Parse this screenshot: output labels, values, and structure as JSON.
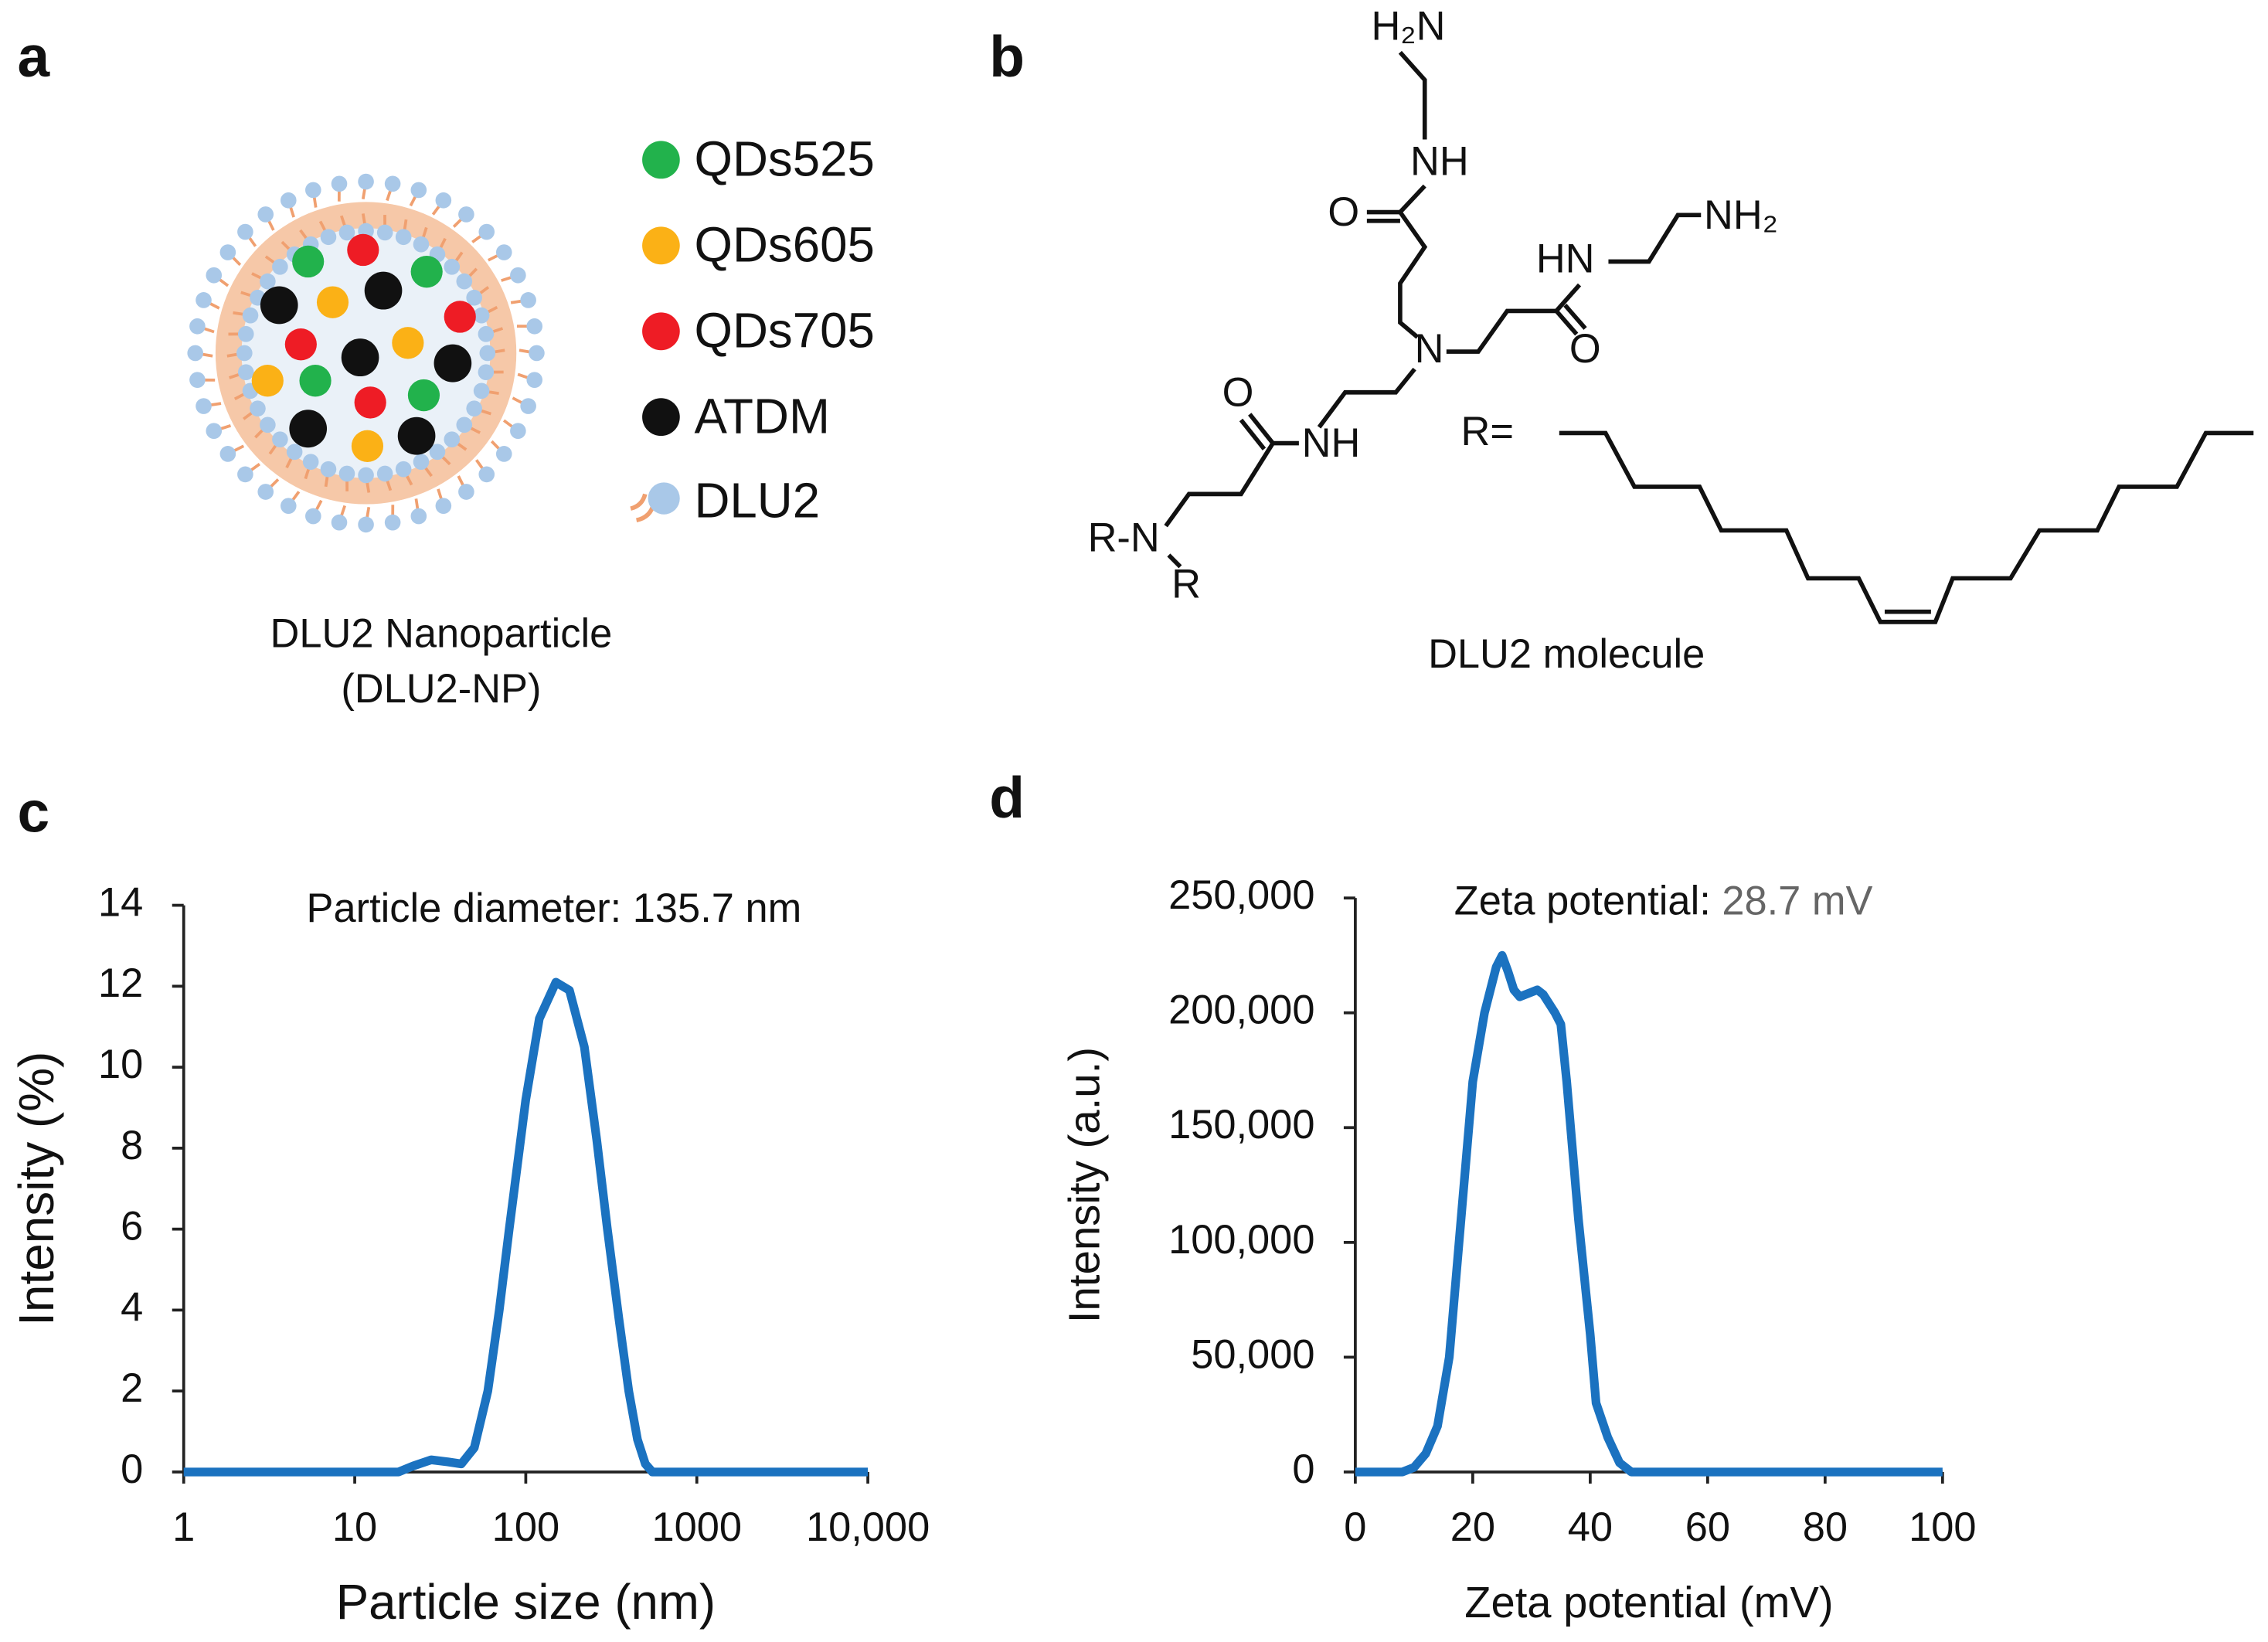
{
  "panel_labels": [
    "a",
    "b",
    "c",
    "d"
  ],
  "nanoparticle": {
    "legend": [
      "QDs525",
      "QDs605",
      "QDs705",
      "ATDM",
      "DLU2"
    ],
    "caption": [
      "DLU2 Nanoparticle",
      "(DLU2-NP)"
    ]
  },
  "molecule": {
    "atoms": [
      "H₂N",
      "NH",
      "O",
      "HN",
      "NH₂",
      "O",
      "N",
      "O",
      "NH",
      "R-N",
      "R",
      "R="
    ],
    "caption": "DLU2 molecule"
  },
  "chart_data": [
    {
      "type": "line",
      "annotation": "Particle diameter: 135.7 nm",
      "x_label": "Particle size (nm)",
      "y_label": "Intensity (%)",
      "xscale": "log",
      "xlim": [
        1,
        10000
      ],
      "xticks": [
        1,
        10,
        100,
        1000,
        {
          "value": 10000,
          "label": "10,000"
        }
      ],
      "ylim": [
        0,
        14
      ],
      "yticks": [
        0,
        2,
        4,
        6,
        8,
        10,
        12,
        14
      ],
      "color": "#1b72c0",
      "x": [
        1,
        10,
        18,
        22,
        28,
        35,
        42,
        50,
        60,
        70,
        80,
        100,
        120,
        150,
        180,
        220,
        260,
        300,
        350,
        400,
        450,
        500,
        550,
        1000,
        10000
      ],
      "values": [
        0,
        0,
        0,
        0.15,
        0.3,
        0.25,
        0.2,
        0.6,
        2,
        4,
        6,
        9.2,
        11.2,
        12.1,
        11.9,
        10.5,
        8.2,
        6,
        3.8,
        2,
        0.8,
        0.2,
        0,
        0,
        0
      ]
    },
    {
      "type": "line",
      "annotation": [
        "Zeta potential: ",
        "28.7 mV"
      ],
      "x_label": "Zeta potential (mV)",
      "y_label": "Intensity (a.u.)",
      "xscale": "linear",
      "xlim": [
        0,
        100
      ],
      "xticks": [
        0,
        20,
        40,
        60,
        80,
        100
      ],
      "ylim": [
        0,
        250000
      ],
      "yticks": [
        0,
        {
          "value": 50000,
          "label": "50,000"
        },
        {
          "value": 100000,
          "label": "100,000"
        },
        {
          "value": 150000,
          "label": "150,000"
        },
        {
          "value": 200000,
          "label": "200,000"
        },
        {
          "value": 250000,
          "label": "250,000"
        }
      ],
      "color": "#1b72c0",
      "x": [
        0,
        8,
        10,
        12,
        14,
        16,
        18,
        20,
        22,
        24,
        25,
        26,
        27,
        28,
        29,
        31,
        32,
        34,
        35,
        36,
        38,
        40,
        41,
        43,
        45,
        47,
        100
      ],
      "values": [
        0,
        0,
        2000,
        8000,
        20000,
        50000,
        110000,
        170000,
        200000,
        220000,
        225000,
        218000,
        210000,
        207000,
        208000,
        210000,
        208000,
        200000,
        195000,
        170000,
        110000,
        60000,
        30000,
        15000,
        4000,
        0,
        0
      ]
    }
  ]
}
